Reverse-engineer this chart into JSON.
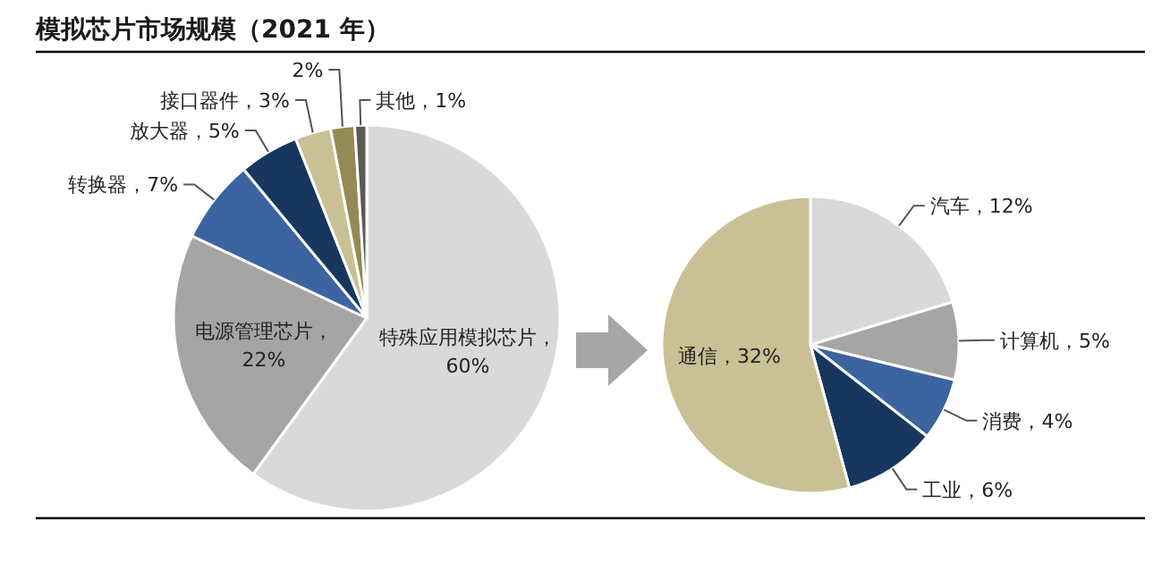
{
  "chart_data": [
    {
      "type": "pie",
      "title": "模拟芯片市场规模（2021 年）",
      "categories": [
        "特殊应用模拟芯片，\n60%",
        "电源管理芯片，\n22%",
        "转换器，7%",
        "放大器，5%",
        "接口器件，3%",
        "2%",
        "其他，1%"
      ],
      "values": [
        60,
        22,
        7,
        5,
        3,
        2,
        1
      ],
      "colors": [
        "#d9d9d9",
        "#a5a5a5",
        "#3b64a0",
        "#17375e",
        "#c9c095",
        "#948a54",
        "#595959"
      ]
    },
    {
      "type": "pie",
      "categories": [
        "汽车，12%",
        "计算机，5%",
        "消费，4%",
        "工业，6%",
        "通信，32%"
      ],
      "values": [
        12,
        5,
        4,
        6,
        32
      ],
      "colors": [
        "#d9d9d9",
        "#a5a5a5",
        "#3b64a0",
        "#17375e",
        "#c9c095"
      ]
    }
  ]
}
